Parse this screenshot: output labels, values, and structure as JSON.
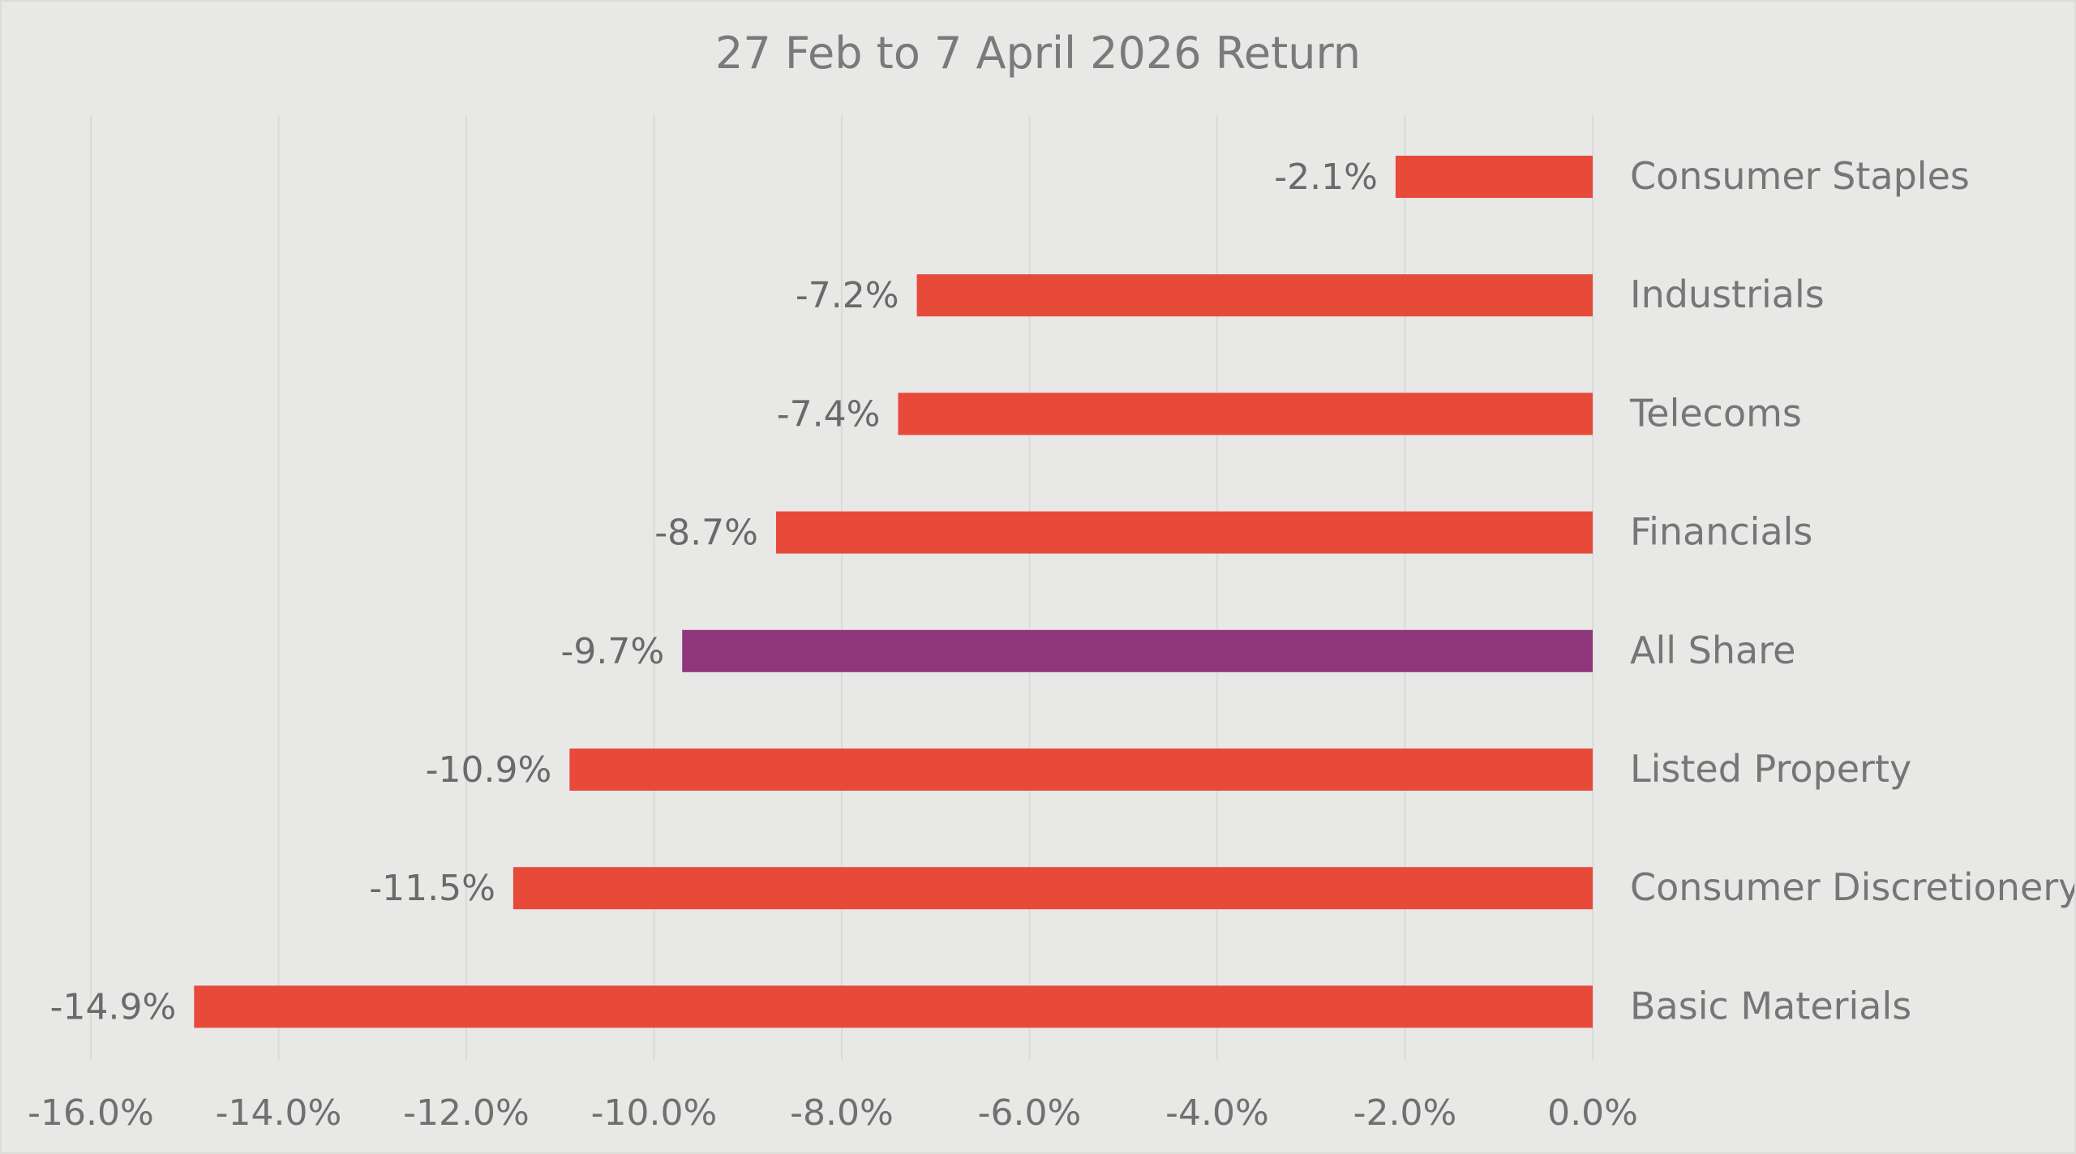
{
  "chart_data": {
    "type": "bar",
    "orientation": "horizontal",
    "title": "27 Feb to 7 April 2026 Return",
    "xlabel": "",
    "ylabel": "",
    "categories": [
      "Consumer Staples",
      "Industrials",
      "Telecoms",
      "Financials",
      "All Share",
      "Listed Property",
      "Consumer Discretionery",
      "Basic Materials"
    ],
    "values": [
      -2.1,
      -7.2,
      -7.4,
      -8.7,
      -9.7,
      -10.9,
      -11.5,
      -14.9
    ],
    "data_labels": [
      "-2.1%",
      "-7.2%",
      "-7.4%",
      "-8.7%",
      "-9.7%",
      "-10.9%",
      "-11.5%",
      "-14.9%"
    ],
    "bar_colors": [
      "#e84a3a",
      "#e84a3a",
      "#e84a3a",
      "#e84a3a",
      "#8e377a",
      "#e84a3a",
      "#e84a3a",
      "#e84a3a"
    ],
    "xlim": [
      -16,
      0
    ],
    "xticks": [
      -16,
      -14,
      -12,
      -10,
      -8,
      -6,
      -4,
      -2,
      0
    ],
    "xtick_labels": [
      "-16.0%",
      "-14.0%",
      "-12.0%",
      "-10.0%",
      "-8.0%",
      "-6.0%",
      "-4.0%",
      "-2.0%",
      "0.0%"
    ],
    "grid": true,
    "legend": "none",
    "category_axis_side": "right"
  }
}
